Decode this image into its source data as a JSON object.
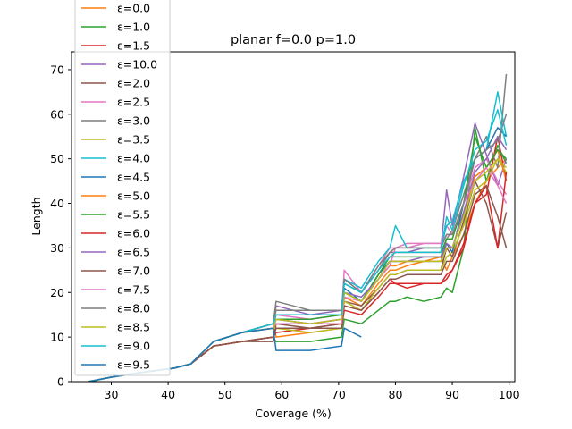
{
  "chart_data": {
    "type": "line",
    "title": "planar f=0.0 p=1.0",
    "xlabel": "Coverage (%)",
    "ylabel": "Length",
    "xlim": [
      23,
      101
    ],
    "ylim": [
      0,
      74
    ],
    "xticks": [
      30,
      40,
      50,
      60,
      70,
      80,
      90,
      100
    ],
    "yticks": [
      0,
      10,
      20,
      30,
      40,
      50,
      60,
      70
    ],
    "grid": false,
    "legend_position": "top-left",
    "series": [
      {
        "name": "ε=0.0",
        "color": "#ff7f0e",
        "x": [
          26,
          30,
          35,
          41,
          44,
          48,
          53,
          58.5,
          59,
          65,
          70.5,
          71,
          74,
          77,
          79,
          80,
          82,
          85,
          88,
          89,
          90,
          92,
          94,
          96,
          98,
          99.5
        ],
        "y": [
          0,
          1,
          2,
          3,
          4,
          9,
          11,
          13,
          10,
          11,
          12,
          19,
          17,
          22,
          25,
          25,
          26,
          27,
          28,
          25,
          28,
          33,
          40,
          45,
          48,
          50
        ]
      },
      {
        "name": "ε=1.0",
        "color": "#2ca02c",
        "x": [
          26,
          30,
          35,
          41,
          44,
          48,
          53,
          58.5,
          59,
          65,
          70.5,
          71,
          74,
          77,
          79,
          80,
          82,
          85,
          88,
          89,
          90,
          92,
          94,
          96,
          98,
          99.5
        ],
        "y": [
          0,
          1,
          2,
          3,
          4,
          8,
          9,
          10,
          9,
          9,
          10,
          14,
          13,
          16,
          18,
          18,
          19,
          18,
          19,
          21,
          20,
          30,
          57,
          45,
          53,
          49
        ]
      },
      {
        "name": "ε=1.5",
        "color": "#d62728",
        "x": [
          26,
          30,
          35,
          41,
          44,
          48,
          53,
          58.5,
          59,
          65,
          70.5,
          71,
          74,
          77,
          79,
          80,
          82,
          85,
          88,
          89,
          90,
          92,
          94,
          96,
          98,
          99.5
        ],
        "y": [
          0,
          1,
          2,
          3,
          4,
          8,
          9,
          10,
          11,
          12,
          13,
          17,
          16,
          20,
          23,
          22,
          21,
          22,
          22,
          23,
          25,
          31,
          40,
          42,
          55,
          45
        ]
      },
      {
        "name": "ε=10.0",
        "color": "#9467bd",
        "x": [
          26,
          30,
          35,
          41,
          44,
          48,
          53,
          58.5,
          59,
          65,
          70.5,
          71,
          74,
          77,
          79,
          80,
          82,
          85,
          88,
          89,
          90,
          92,
          94,
          96,
          98,
          99.5
        ],
        "y": [
          0,
          1,
          2,
          3,
          4,
          9,
          11,
          12,
          17,
          15,
          16,
          23,
          20,
          25,
          29,
          29,
          29,
          30,
          30,
          43,
          35,
          46,
          58,
          51,
          44,
          50
        ]
      },
      {
        "name": "ε=2.0",
        "color": "#8c564b",
        "x": [
          26,
          30,
          35,
          41,
          44,
          48,
          53,
          58.5,
          59,
          65,
          70.5,
          71,
          74,
          77,
          79,
          80,
          82,
          85,
          88,
          89,
          90,
          92,
          94,
          96,
          98,
          99.5
        ],
        "y": [
          0,
          1,
          2,
          3,
          4,
          8,
          9,
          9,
          13,
          12,
          13,
          18,
          17,
          21,
          24,
          24,
          25,
          25,
          25,
          30,
          28,
          36,
          45,
          40,
          30,
          38
        ]
      },
      {
        "name": "ε=2.5",
        "color": "#e377c2",
        "x": [
          26,
          30,
          35,
          41,
          44,
          48,
          53,
          58.5,
          59,
          65,
          70.5,
          71,
          74,
          77,
          79,
          80,
          82,
          85,
          88,
          89,
          90,
          92,
          94,
          96,
          98,
          99.5
        ],
        "y": [
          0,
          1,
          2,
          3,
          4,
          9,
          11,
          12,
          15,
          14,
          15,
          25,
          20,
          26,
          30,
          30,
          31,
          31,
          31,
          35,
          33,
          40,
          48,
          50,
          45,
          42
        ]
      },
      {
        "name": "ε=3.0",
        "color": "#7f7f7f",
        "x": [
          26,
          30,
          35,
          41,
          44,
          48,
          53,
          58.5,
          59,
          65,
          70.5,
          71,
          74,
          77,
          79,
          80,
          82,
          85,
          88,
          89,
          90,
          92,
          94,
          96,
          98,
          99.5
        ],
        "y": [
          0,
          1,
          2,
          3,
          4,
          9,
          11,
          13,
          16,
          16,
          16,
          22,
          20,
          25,
          29,
          29,
          29,
          29,
          29,
          32,
          34,
          42,
          50,
          55,
          48,
          69
        ]
      },
      {
        "name": "ε=3.5",
        "color": "#bcbd22",
        "x": [
          26,
          30,
          35,
          41,
          44,
          48,
          53,
          58.5,
          59,
          65,
          70.5,
          71,
          74,
          77,
          79,
          80,
          82,
          85,
          88,
          89,
          90,
          92,
          94,
          96,
          98,
          99.5
        ],
        "y": [
          0,
          1,
          2,
          3,
          4,
          9,
          11,
          12,
          12,
          11,
          12,
          18,
          16,
          21,
          24,
          24,
          25,
          25,
          25,
          28,
          29,
          35,
          43,
          45,
          50,
          47
        ]
      },
      {
        "name": "ε=4.0",
        "color": "#17becf",
        "x": [
          26,
          30,
          35,
          41,
          44,
          48,
          53,
          58.5,
          59,
          65,
          70.5,
          71,
          74,
          77,
          79,
          80,
          82,
          85,
          88,
          89,
          90,
          92,
          94,
          96,
          98,
          99.5
        ],
        "y": [
          0,
          1,
          2,
          3,
          4,
          9,
          11,
          13,
          15,
          15,
          15,
          23,
          21,
          27,
          30,
          35,
          30,
          30,
          30,
          35,
          36,
          45,
          50,
          52,
          65,
          55
        ]
      },
      {
        "name": "ε=4.5",
        "color": "#1f77b4",
        "x": [
          26,
          30,
          35,
          41,
          44,
          48,
          53,
          58.5,
          59,
          65,
          70.5,
          71,
          74,
          77,
          79,
          80,
          82,
          85,
          88,
          89,
          90,
          92,
          94,
          96,
          98,
          99.5
        ],
        "y": [
          0,
          1,
          2,
          3,
          4,
          9,
          11,
          13,
          14,
          13,
          14,
          21,
          18,
          24,
          27,
          27,
          27,
          27,
          27,
          31,
          29,
          40,
          50,
          52,
          57,
          55
        ]
      },
      {
        "name": "ε=5.0",
        "color": "#ff7f0e",
        "x": [
          26,
          30,
          35,
          41,
          44,
          48,
          53,
          58.5,
          59,
          65,
          70.5,
          71,
          74,
          77,
          79,
          80,
          82,
          85,
          88,
          89,
          90,
          92,
          94,
          96,
          98,
          99.5
        ],
        "y": [
          0,
          1,
          2,
          3,
          4,
          9,
          11,
          12,
          13,
          13,
          14,
          20,
          18,
          23,
          26,
          26,
          27,
          27,
          27,
          30,
          30,
          38,
          46,
          48,
          52,
          45
        ]
      },
      {
        "name": "ε=5.5",
        "color": "#2ca02c",
        "x": [
          26,
          30,
          35,
          41,
          44,
          48,
          53,
          58.5,
          59,
          65,
          70.5,
          71,
          74,
          77,
          79,
          80,
          82,
          85,
          88,
          89,
          90,
          92,
          94,
          96,
          98,
          99.5
        ],
        "y": [
          0,
          1,
          2,
          3,
          4,
          9,
          11,
          12,
          14,
          14,
          15,
          20,
          18,
          24,
          28,
          28,
          28,
          28,
          28,
          32,
          32,
          40,
          55,
          48,
          52,
          50
        ]
      },
      {
        "name": "ε=6.0",
        "color": "#d62728",
        "x": [
          26,
          30,
          35,
          41,
          44,
          48,
          53,
          58.5,
          59,
          65,
          70.5,
          71,
          74,
          77,
          79,
          80,
          82,
          85,
          88,
          89,
          90,
          92,
          94,
          96,
          98,
          99.5
        ],
        "y": [
          0,
          1,
          2,
          3,
          4,
          8,
          9,
          10,
          12,
          12,
          12,
          16,
          15,
          19,
          22,
          22,
          22,
          22,
          22,
          24,
          25,
          30,
          40,
          44,
          30,
          47
        ]
      },
      {
        "name": "ε=6.5",
        "color": "#9467bd",
        "x": [
          26,
          30,
          35,
          41,
          44,
          48,
          53,
          58.5,
          59,
          65,
          70.5,
          71,
          74,
          77,
          79,
          80,
          82,
          85,
          88,
          89,
          90,
          92,
          94,
          96,
          98,
          99.5
        ],
        "y": [
          0,
          1,
          2,
          3,
          4,
          9,
          11,
          12,
          14,
          13,
          14,
          20,
          19,
          23,
          27,
          27,
          27,
          28,
          28,
          31,
          30,
          38,
          47,
          50,
          55,
          52
        ]
      },
      {
        "name": "ε=7.0",
        "color": "#8c564b",
        "x": [
          26,
          30,
          35,
          41,
          44,
          48,
          53,
          58.5,
          59,
          65,
          70.5,
          71,
          74,
          77,
          79,
          80,
          82,
          85,
          88,
          89,
          90,
          92,
          94,
          96,
          98,
          99.5
        ],
        "y": [
          0,
          1,
          2,
          3,
          4,
          8,
          9,
          10,
          12,
          12,
          12,
          17,
          16,
          20,
          23,
          23,
          24,
          24,
          24,
          27,
          27,
          33,
          42,
          44,
          37,
          30
        ]
      },
      {
        "name": "ε=7.5",
        "color": "#e377c2",
        "x": [
          26,
          30,
          35,
          41,
          44,
          48,
          53,
          58.5,
          59,
          65,
          70.5,
          71,
          74,
          77,
          79,
          80,
          82,
          85,
          88,
          89,
          90,
          92,
          94,
          96,
          98,
          99.5
        ],
        "y": [
          0,
          1,
          2,
          3,
          4,
          9,
          11,
          12,
          13,
          13,
          13,
          19,
          18,
          23,
          26,
          30,
          30,
          31,
          31,
          33,
          33,
          40,
          45,
          48,
          44,
          40
        ]
      },
      {
        "name": "ε=8.0",
        "color": "#7f7f7f",
        "x": [
          26,
          30,
          35,
          41,
          44,
          48,
          53,
          58.5,
          59,
          65,
          70.5,
          71,
          74,
          77,
          79,
          80,
          82,
          85,
          88,
          89,
          90,
          92,
          94,
          96,
          98,
          99.5
        ],
        "y": [
          0,
          1,
          2,
          3,
          4,
          9,
          11,
          13,
          18,
          16,
          16,
          23,
          20,
          26,
          29,
          30,
          30,
          30,
          30,
          33,
          33,
          40,
          50,
          52,
          54,
          60
        ]
      },
      {
        "name": "ε=8.5",
        "color": "#bcbd22",
        "x": [
          26,
          30,
          35,
          41,
          44,
          48,
          53,
          58.5,
          59,
          65,
          70.5,
          71,
          74,
          77,
          79,
          80,
          82,
          85,
          88,
          89,
          90,
          92,
          94,
          96,
          98,
          99.5
        ],
        "y": [
          0,
          1,
          2,
          3,
          4,
          9,
          11,
          12,
          14,
          13,
          14,
          20,
          18,
          23,
          27,
          27,
          27,
          27,
          27,
          30,
          30,
          37,
          45,
          47,
          50,
          48
        ]
      },
      {
        "name": "ε=9.0",
        "color": "#17becf",
        "x": [
          26,
          30,
          35,
          41,
          44,
          48,
          53,
          58.5,
          59,
          65,
          70.5,
          71,
          74,
          77,
          79,
          80,
          82,
          85,
          88,
          89,
          90,
          92,
          94,
          96,
          98,
          99.5
        ],
        "y": [
          0,
          1,
          2,
          3,
          4,
          9,
          11,
          13,
          15,
          15,
          15,
          22,
          20,
          25,
          28,
          29,
          29,
          29,
          29,
          37,
          34,
          44,
          52,
          54,
          61,
          53
        ]
      },
      {
        "name": "ε=9.5",
        "color": "#1f77b4",
        "x": [
          26,
          30,
          35,
          41,
          44,
          48,
          53,
          58.5,
          59,
          65,
          70.5,
          71,
          74,
          77,
          79,
          80,
          82,
          85,
          88,
          89,
          90,
          92,
          94,
          96,
          98,
          99.5
        ],
        "y": [
          0,
          1,
          2,
          3,
          4,
          9,
          11,
          12,
          7,
          7,
          8,
          12,
          10,
          null,
          null,
          null,
          null,
          null,
          null,
          null,
          null,
          null,
          null,
          null,
          null,
          null
        ]
      }
    ]
  }
}
